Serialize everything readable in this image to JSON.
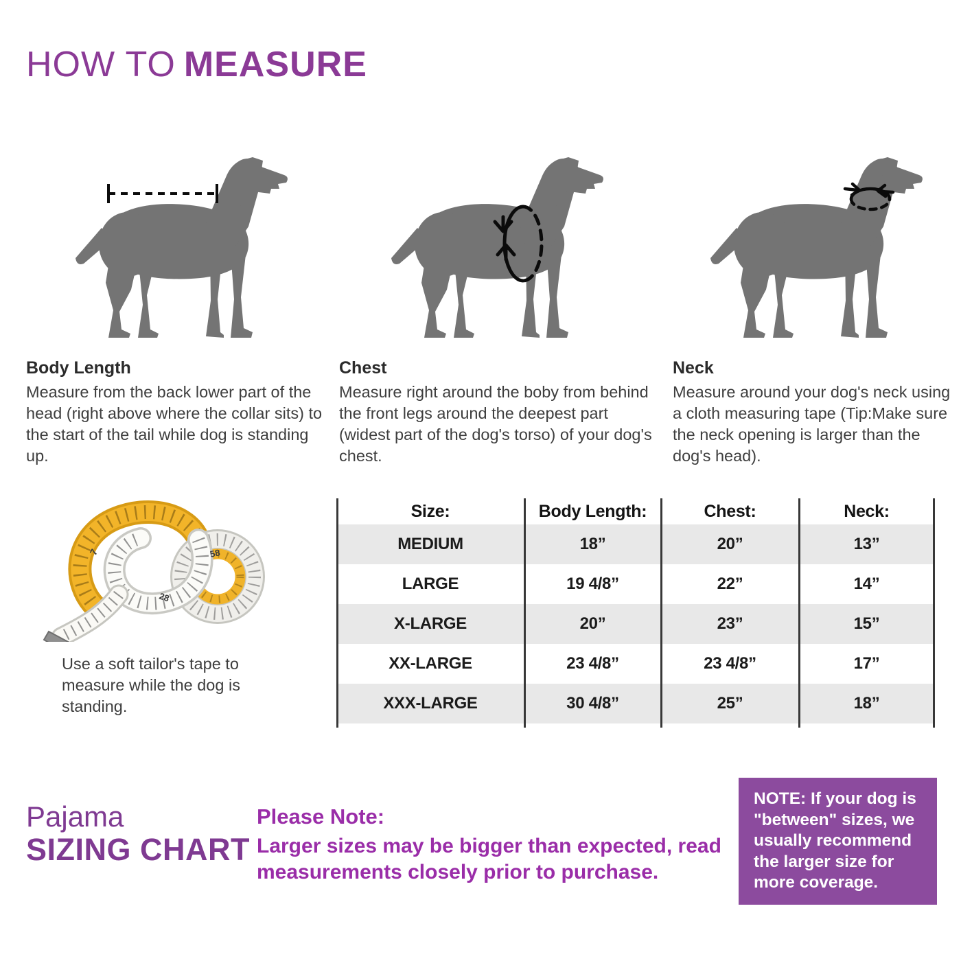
{
  "title": {
    "light": "HOW TO",
    "bold": "MEASURE"
  },
  "sections": [
    {
      "heading": "Body Length",
      "text": "Measure from the back lower part of the head (right above where the collar sits) to the start of the tail while dog is standing up."
    },
    {
      "heading": "Chest",
      "text": "Measure right around the boby from behind the front legs around the deepest part (widest part of the dog's torso) of your dog's chest."
    },
    {
      "heading": "Neck",
      "text": "Measure around your dog's neck using a cloth measuring tape (Tip:Make sure the neck opening is larger than the dog's head)."
    }
  ],
  "tape_note": "Use a soft tailor's tape to measure while the dog is standing.",
  "chart_data": {
    "type": "table",
    "title": "Pajama Sizing Chart",
    "columns": [
      "Size:",
      "Body Length:",
      "Chest:",
      "Neck:"
    ],
    "rows": [
      [
        "MEDIUM",
        "18”",
        "20”",
        "13”"
      ],
      [
        "LARGE",
        "19 4/8”",
        "22”",
        "14”"
      ],
      [
        "X-LARGE",
        "20”",
        "23”",
        "15”"
      ],
      [
        "XX-LARGE",
        "23 4/8”",
        "23 4/8”",
        "17”"
      ],
      [
        "XXX-LARGE",
        "30 4/8”",
        "25”",
        "18”"
      ]
    ],
    "striped_rows": [
      0,
      2,
      4
    ]
  },
  "footer": {
    "product_line1": "Pajama",
    "product_line2": "SIZING CHART",
    "note_heading": "Please Note:",
    "note_body": "Larger sizes may be bigger than expected, read measurements closely prior to purchase.",
    "box_note": "NOTE: If your dog is \"between\" sizes, we usually recommend the larger size for more coverage."
  },
  "figures": {
    "dog_silhouette": "gray standing pointer dog, side view facing right",
    "body_length_indicator": "horizontal dashed line with end caps above the dog's back",
    "chest_indicator": "vertical ellipse around chest, solid left half, dashed right half, arrows pointing inward",
    "neck_indicator": "small ellipse around neck, solid top, dashed bottom, arrows pointing inward",
    "tape_measure": "coiled yellow and white tailor's measuring tape"
  },
  "colors": {
    "title_purple": "#8b3a96",
    "footer_purple": "#7f3a92",
    "note_text_purple": "#9a2da8",
    "note_box_purple": "#8c4b9e",
    "dog_gray": "#747474",
    "table_stripe": "#e8e8e8",
    "table_line": "#383838",
    "tape_yellow": "#f2b429"
  }
}
